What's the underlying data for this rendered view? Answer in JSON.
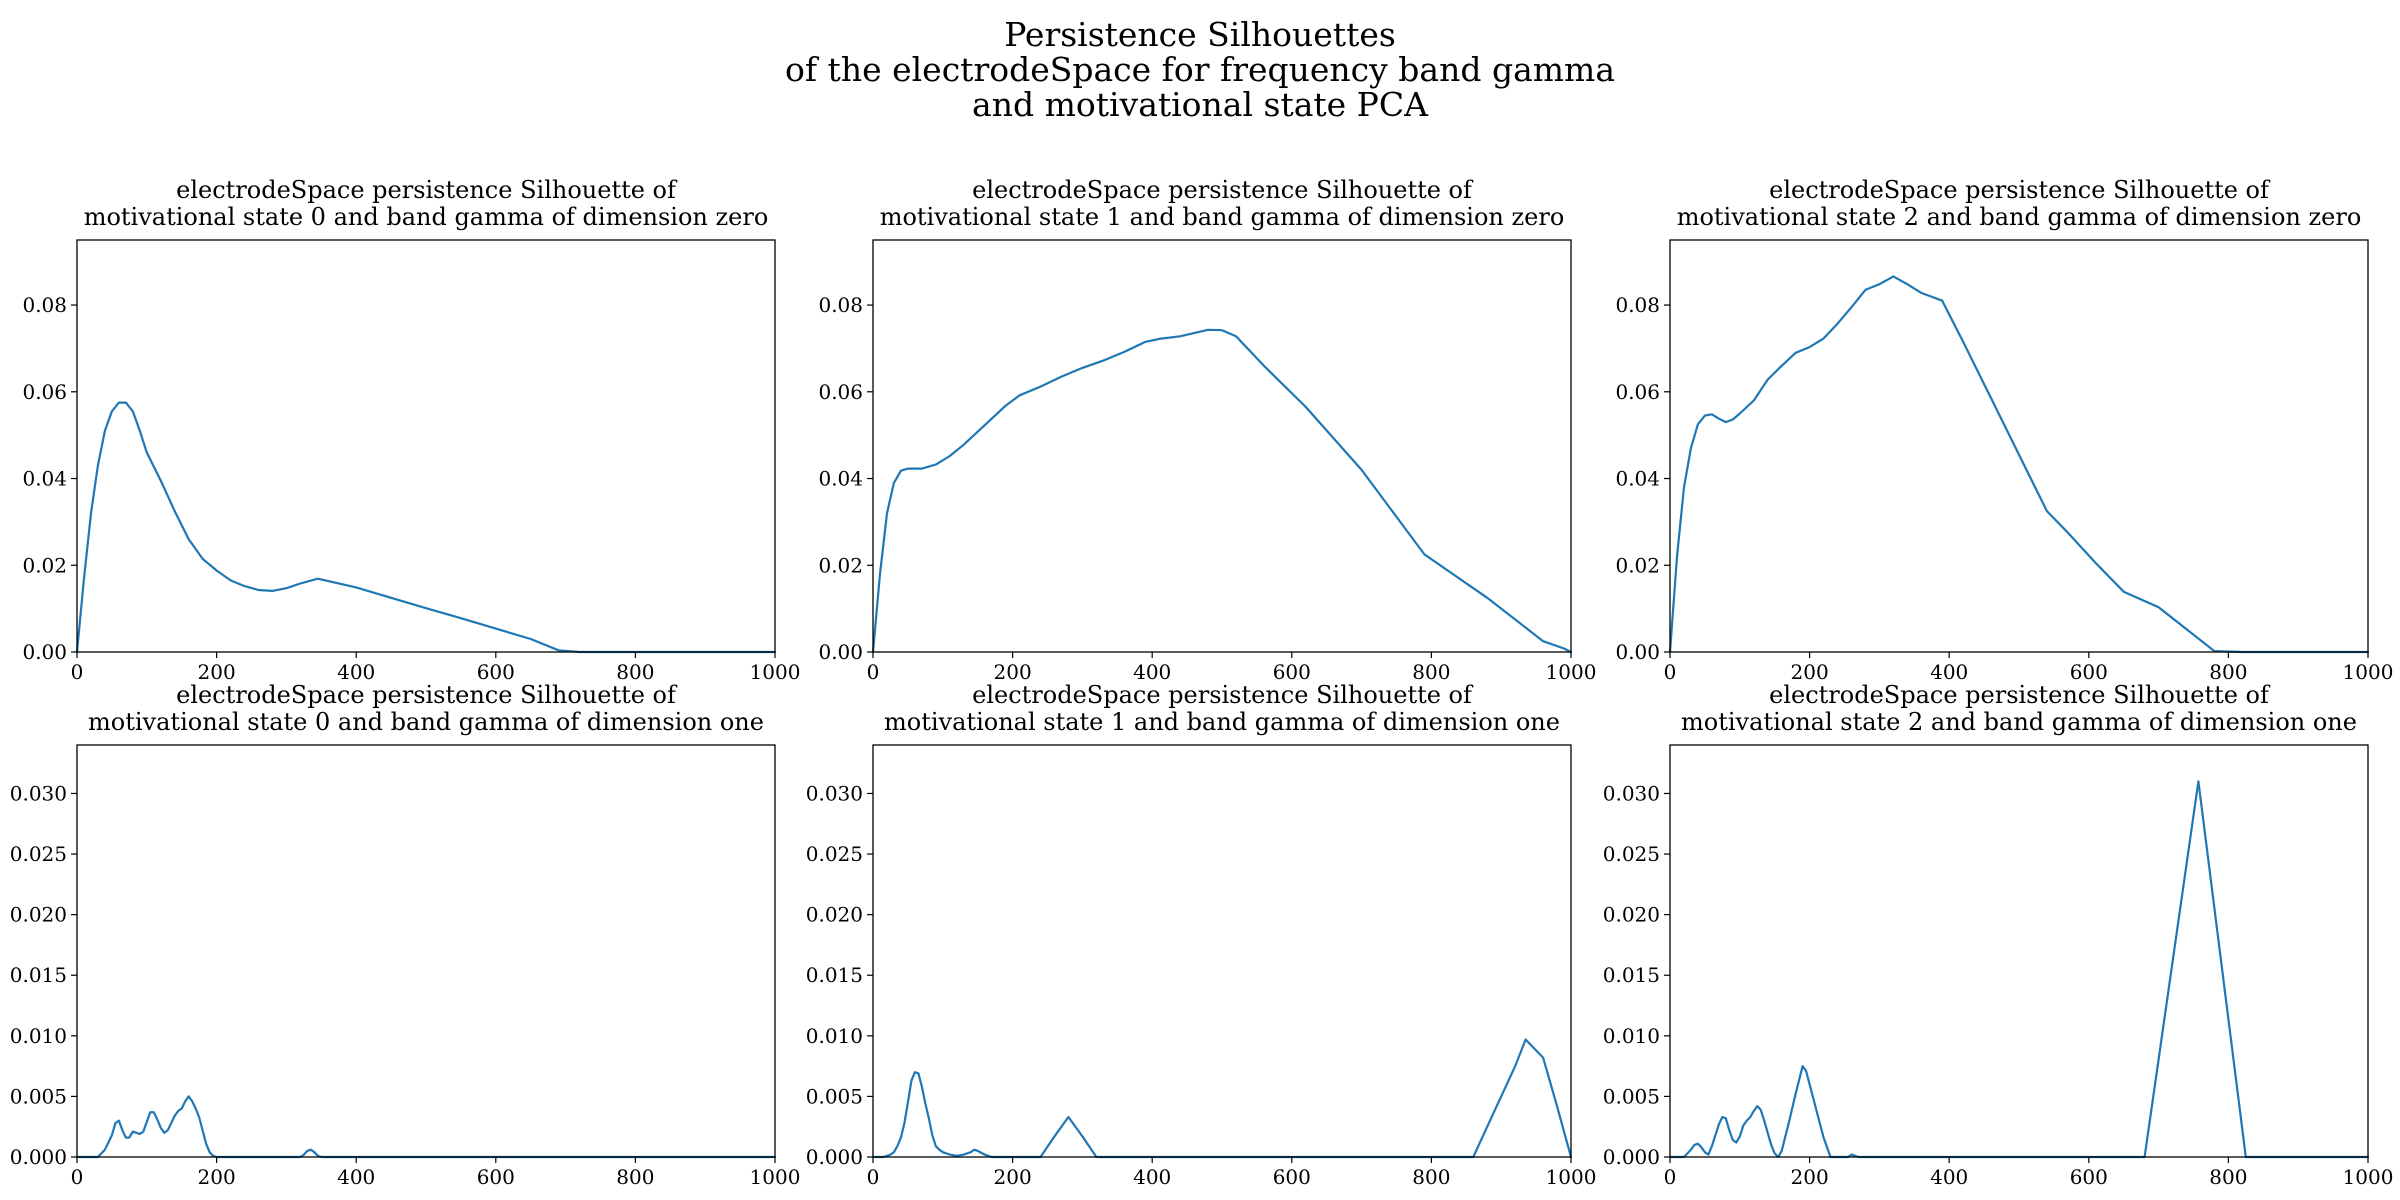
{
  "figure": {
    "suptitle_lines": [
      "Persistence Silhouettes",
      "of the electrodeSpace for frequency band gamma",
      "and motivational state PCA"
    ],
    "line_color": "#1f77b4"
  },
  "chart_data": [
    {
      "type": "line",
      "title_lines": [
        "electrodeSpace persistence Silhouette of",
        "motivational state 0 and band gamma of dimension zero"
      ],
      "xlim": [
        0,
        1000
      ],
      "ylim": [
        0,
        0.095
      ],
      "xticks": [
        0,
        200,
        400,
        600,
        800,
        1000
      ],
      "xtick_labels": [
        "0",
        "200",
        "400",
        "600",
        "800",
        "1000"
      ],
      "yticks": [
        0,
        0.02,
        0.04,
        0.06,
        0.08
      ],
      "ytick_labels": [
        "0.00",
        "0.02",
        "0.04",
        "0.06",
        "0.08"
      ],
      "series": [
        {
          "x": [
            0,
            10,
            20,
            30,
            40,
            50,
            60,
            70,
            80,
            90,
            100,
            120,
            140,
            160,
            180,
            200,
            220,
            240,
            260,
            280,
            300,
            320,
            345,
            400,
            450,
            500,
            550,
            600,
            650,
            690,
            720,
            800,
            900,
            1000
          ],
          "y": [
            0,
            0.017,
            0.032,
            0.043,
            0.051,
            0.0555,
            0.0575,
            0.0575,
            0.0555,
            0.051,
            0.046,
            0.0395,
            0.0325,
            0.026,
            0.0215,
            0.0188,
            0.0165,
            0.0152,
            0.0143,
            0.0141,
            0.0147,
            0.0158,
            0.0169,
            0.0149,
            0.0125,
            0.0101,
            0.0078,
            0.0054,
            0.003,
            0.0004,
            0,
            0,
            0,
            0
          ]
        }
      ]
    },
    {
      "type": "line",
      "title_lines": [
        "electrodeSpace persistence Silhouette of",
        "motivational state 1 and band gamma of dimension zero"
      ],
      "xlim": [
        0,
        1000
      ],
      "ylim": [
        0,
        0.095
      ],
      "xticks": [
        0,
        200,
        400,
        600,
        800,
        1000
      ],
      "xtick_labels": [
        "0",
        "200",
        "400",
        "600",
        "800",
        "1000"
      ],
      "yticks": [
        0,
        0.02,
        0.04,
        0.06,
        0.08
      ],
      "ytick_labels": [
        "0.00",
        "0.02",
        "0.04",
        "0.06",
        "0.08"
      ],
      "series": [
        {
          "x": [
            0,
            10,
            20,
            30,
            40,
            50,
            70,
            90,
            110,
            130,
            150,
            170,
            190,
            210,
            240,
            270,
            300,
            330,
            360,
            390,
            410,
            440,
            480,
            500,
            520,
            560,
            620,
            700,
            790,
            880,
            960,
            990,
            1000
          ],
          "y": [
            0,
            0.018,
            0.032,
            0.039,
            0.0418,
            0.0423,
            0.0423,
            0.0432,
            0.0452,
            0.0478,
            0.0508,
            0.0538,
            0.0568,
            0.0592,
            0.0612,
            0.0635,
            0.0655,
            0.0672,
            0.0692,
            0.0715,
            0.0722,
            0.0728,
            0.0743,
            0.0742,
            0.0728,
            0.066,
            0.0565,
            0.042,
            0.0225,
            0.0125,
            0.0025,
            0.0008,
            0
          ]
        }
      ]
    },
    {
      "type": "line",
      "title_lines": [
        "electrodeSpace persistence Silhouette of",
        "motivational state 2 and band gamma of dimension zero"
      ],
      "xlim": [
        0,
        1000
      ],
      "ylim": [
        0,
        0.095
      ],
      "xticks": [
        0,
        200,
        400,
        600,
        800,
        1000
      ],
      "xtick_labels": [
        "0",
        "200",
        "400",
        "600",
        "800",
        "1000"
      ],
      "yticks": [
        0,
        0.02,
        0.04,
        0.06,
        0.08
      ],
      "ytick_labels": [
        "0.00",
        "0.02",
        "0.04",
        "0.06",
        "0.08"
      ],
      "series": [
        {
          "x": [
            0,
            10,
            20,
            30,
            40,
            50,
            60,
            70,
            80,
            90,
            100,
            120,
            140,
            160,
            180,
            200,
            220,
            240,
            260,
            280,
            300,
            320,
            340,
            360,
            390,
            420,
            460,
            500,
            540,
            570,
            610,
            650,
            700,
            780,
            820,
            900,
            1000
          ],
          "y": [
            0,
            0.022,
            0.038,
            0.047,
            0.0525,
            0.0545,
            0.0548,
            0.0538,
            0.053,
            0.0536,
            0.055,
            0.058,
            0.0628,
            0.066,
            0.069,
            0.0703,
            0.0723,
            0.0757,
            0.0795,
            0.0835,
            0.0848,
            0.0866,
            0.0848,
            0.0828,
            0.081,
            0.0715,
            0.0585,
            0.0455,
            0.0325,
            0.0275,
            0.0205,
            0.0139,
            0.0103,
            0.0002,
            0,
            0,
            0
          ]
        }
      ]
    },
    {
      "type": "line",
      "title_lines": [
        "electrodeSpace persistence Silhouette of",
        "motivational state 0 and band gamma of dimension one"
      ],
      "xlim": [
        0,
        1000
      ],
      "ylim": [
        0,
        0.034
      ],
      "xticks": [
        0,
        200,
        400,
        600,
        800,
        1000
      ],
      "xtick_labels": [
        "0",
        "200",
        "400",
        "600",
        "800",
        "1000"
      ],
      "yticks": [
        0,
        0.005,
        0.01,
        0.015,
        0.02,
        0.025,
        0.03
      ],
      "ytick_labels": [
        "0.000",
        "0.005",
        "0.010",
        "0.015",
        "0.020",
        "0.025",
        "0.030"
      ],
      "series": [
        {
          "x": [
            0,
            30,
            40,
            50,
            55,
            60,
            65,
            70,
            75,
            80,
            85,
            90,
            95,
            100,
            105,
            110,
            115,
            120,
            125,
            130,
            135,
            140,
            145,
            150,
            155,
            160,
            165,
            170,
            175,
            180,
            185,
            190,
            195,
            200,
            205,
            210,
            320,
            325,
            330,
            335,
            340,
            345,
            350,
            1000
          ],
          "y": [
            0,
            0,
            0.0006,
            0.0018,
            0.0028,
            0.003,
            0.0022,
            0.0016,
            0.0016,
            0.0021,
            0.002,
            0.0019,
            0.0021,
            0.0029,
            0.0037,
            0.0037,
            0.0031,
            0.0024,
            0.002,
            0.0022,
            0.0028,
            0.0034,
            0.0038,
            0.004,
            0.0046,
            0.005,
            0.0046,
            0.004,
            0.0033,
            0.0022,
            0.0011,
            0.0004,
            0.0001,
            0,
            0,
            0,
            0,
            0.0002,
            0.0005,
            0.0006,
            0.0004,
            0.0001,
            0,
            0
          ]
        }
      ]
    },
    {
      "type": "line",
      "title_lines": [
        "electrodeSpace persistence Silhouette of",
        "motivational state 1 and band gamma of dimension one"
      ],
      "xlim": [
        0,
        1000
      ],
      "ylim": [
        0,
        0.034
      ],
      "xticks": [
        0,
        200,
        400,
        600,
        800,
        1000
      ],
      "xtick_labels": [
        "0",
        "200",
        "400",
        "600",
        "800",
        "1000"
      ],
      "yticks": [
        0,
        0.005,
        0.01,
        0.015,
        0.02,
        0.025,
        0.03
      ],
      "ytick_labels": [
        "0.000",
        "0.005",
        "0.010",
        "0.015",
        "0.020",
        "0.025",
        "0.030"
      ],
      "series": [
        {
          "x": [
            0,
            15,
            25,
            30,
            35,
            40,
            45,
            50,
            55,
            60,
            65,
            70,
            75,
            80,
            85,
            90,
            95,
            100,
            110,
            120,
            130,
            140,
            145,
            150,
            160,
            170,
            240,
            260,
            280,
            300,
            320,
            860,
            880,
            900,
            920,
            935,
            960,
            980,
            1000
          ],
          "y": [
            0,
            0,
            0.0002,
            0.0004,
            0.0009,
            0.0016,
            0.0028,
            0.0045,
            0.0063,
            0.007,
            0.0069,
            0.0058,
            0.0044,
            0.0032,
            0.0018,
            0.0009,
            0.0006,
            0.0004,
            0.0002,
            0.0001,
            0.0002,
            0.0004,
            0.0006,
            0.0005,
            0.0002,
            0,
            0,
            0.0017,
            0.0033,
            0.0017,
            0,
            0,
            0.0025,
            0.005,
            0.0075,
            0.0097,
            0.0082,
            0.0042,
            0
          ]
        }
      ]
    },
    {
      "type": "line",
      "title_lines": [
        "electrodeSpace persistence Silhouette of",
        "motivational state 2 and band gamma of dimension one"
      ],
      "xlim": [
        0,
        1000
      ],
      "ylim": [
        0,
        0.034
      ],
      "xticks": [
        0,
        200,
        400,
        600,
        800,
        1000
      ],
      "xtick_labels": [
        "0",
        "200",
        "400",
        "600",
        "800",
        "1000"
      ],
      "yticks": [
        0,
        0.005,
        0.01,
        0.015,
        0.02,
        0.025,
        0.03
      ],
      "ytick_labels": [
        "0.000",
        "0.005",
        "0.010",
        "0.015",
        "0.020",
        "0.025",
        "0.030"
      ],
      "series": [
        {
          "x": [
            0,
            20,
            30,
            35,
            40,
            45,
            50,
            55,
            60,
            65,
            70,
            75,
            80,
            85,
            90,
            95,
            100,
            105,
            110,
            115,
            120,
            125,
            130,
            135,
            140,
            145,
            150,
            155,
            160,
            170,
            180,
            190,
            195,
            200,
            210,
            220,
            230,
            255,
            260,
            265,
            270,
            680,
            757,
            825,
            835,
            1000
          ],
          "y": [
            0,
            0,
            0.0006,
            0.001,
            0.0011,
            0.0008,
            0.0004,
            0.0002,
            0.0009,
            0.0018,
            0.0027,
            0.0033,
            0.0032,
            0.0022,
            0.0014,
            0.0012,
            0.0017,
            0.0026,
            0.003,
            0.0033,
            0.0038,
            0.0042,
            0.0039,
            0.003,
            0.002,
            0.001,
            0.0003,
            0,
            0.0005,
            0.0028,
            0.0052,
            0.0075,
            0.0071,
            0.006,
            0.0038,
            0.0016,
            0,
            0,
            0.0002,
            0.0001,
            0,
            0,
            0.031,
            0,
            0,
            0
          ]
        }
      ]
    }
  ]
}
